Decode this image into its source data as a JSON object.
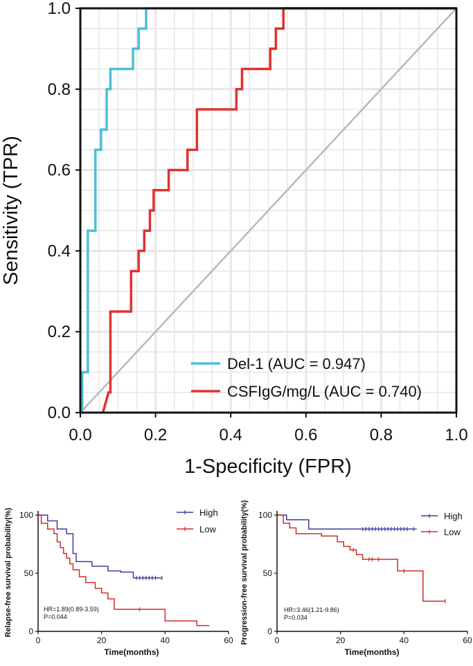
{
  "chart_data": [
    {
      "type": "line",
      "xlabel": "1-Specificity (FPR)",
      "ylabel": "Sensitivity (TPR)",
      "xlim": [
        0,
        1
      ],
      "ylim": [
        0,
        1
      ],
      "xticks": [
        "0.0",
        "0.2",
        "0.4",
        "0.6",
        "0.8",
        "1.0"
      ],
      "yticks": [
        "0.0",
        "0.2",
        "0.4",
        "0.6",
        "0.8",
        "1.0"
      ],
      "grid": true,
      "legend_position": "bottom-right",
      "reference_line": {
        "color": "#b8b8b8",
        "from": [
          0,
          0
        ],
        "to": [
          1,
          1
        ]
      },
      "series": [
        {
          "name": "Del-1 (AUC = 0.947)",
          "color": "#4cbfd6",
          "x": [
            0.0,
            0.005,
            0.005,
            0.02,
            0.02,
            0.04,
            0.04,
            0.055,
            0.055,
            0.07,
            0.07,
            0.08,
            0.08,
            0.14,
            0.14,
            0.155,
            0.155,
            0.175,
            0.175,
            1.0
          ],
          "y": [
            0.0,
            0.0,
            0.1,
            0.1,
            0.45,
            0.45,
            0.65,
            0.65,
            0.7,
            0.7,
            0.8,
            0.8,
            0.85,
            0.85,
            0.9,
            0.9,
            0.95,
            0.95,
            1.0,
            1.0
          ]
        },
        {
          "name": "CSFIgG/mg/L (AUC = 0.740)",
          "color": "#e0312f",
          "x": [
            0.06,
            0.075,
            0.08,
            0.08,
            0.135,
            0.135,
            0.155,
            0.155,
            0.17,
            0.17,
            0.185,
            0.185,
            0.195,
            0.195,
            0.235,
            0.235,
            0.285,
            0.285,
            0.31,
            0.31,
            0.415,
            0.415,
            0.43,
            0.43,
            0.505,
            0.505,
            0.52,
            0.52,
            0.54,
            0.54,
            0.63,
            0.63,
            0.66,
            0.66,
            1.0
          ],
          "y": [
            0.0,
            0.05,
            0.05,
            0.25,
            0.25,
            0.35,
            0.35,
            0.4,
            0.4,
            0.45,
            0.45,
            0.5,
            0.5,
            0.55,
            0.55,
            0.6,
            0.6,
            0.65,
            0.65,
            0.75,
            0.75,
            0.8,
            0.8,
            0.85,
            0.85,
            0.9,
            0.9,
            0.95,
            0.95,
            1.0,
            1.0,
            1.0,
            1.0,
            1.0,
            1.0
          ]
        }
      ]
    },
    {
      "type": "line",
      "xlabel": "Time(months)",
      "ylabel": "Relapse-free survival probability(%)",
      "xlim": [
        0,
        60
      ],
      "ylim": [
        0,
        100
      ],
      "xticks": [
        "0",
        "20",
        "40",
        "60"
      ],
      "yticks": [
        "0",
        "50",
        "100"
      ],
      "legend_position": "top-right",
      "annotation": [
        "HR=1.89(0.89-3.59)",
        "P=0.044"
      ],
      "series": [
        {
          "name": "High",
          "color": "#3a3f9a",
          "x": [
            0,
            3,
            3,
            6,
            6,
            9,
            9,
            11,
            11,
            12,
            12,
            17,
            17,
            22,
            22,
            26,
            26,
            30,
            30,
            39
          ],
          "y": [
            100,
            100,
            95,
            95,
            88,
            88,
            84,
            84,
            67,
            67,
            60,
            60,
            56,
            56,
            52,
            52,
            51,
            51,
            46,
            46
          ],
          "censored_x": [
            31,
            32,
            33,
            34,
            35,
            36,
            37,
            39
          ]
        },
        {
          "name": "Low",
          "color": "#d42a2a",
          "x": [
            0,
            1,
            1,
            3,
            3,
            5,
            5,
            6,
            6,
            7,
            7,
            8,
            8,
            9,
            9,
            10,
            10,
            11,
            11,
            13,
            13,
            15,
            15,
            18,
            18,
            20,
            20,
            22,
            22,
            24,
            24,
            40,
            40,
            50,
            50,
            54
          ],
          "y": [
            100,
            100,
            93,
            93,
            88,
            88,
            84,
            84,
            77,
            77,
            72,
            72,
            67,
            67,
            63,
            63,
            58,
            58,
            53,
            53,
            47,
            47,
            42,
            42,
            37,
            37,
            33,
            33,
            28,
            28,
            19,
            19,
            9,
            9,
            5,
            5
          ],
          "censored_x": [
            32
          ]
        }
      ]
    },
    {
      "type": "line",
      "xlabel": "Time(months)",
      "ylabel": "Progression-free survival probability(%)",
      "xlim": [
        0,
        60
      ],
      "ylim": [
        0,
        100
      ],
      "xticks": [
        "0",
        "20",
        "40",
        "60"
      ],
      "yticks": [
        "0",
        "50",
        "100"
      ],
      "legend_position": "top-right",
      "annotation": [
        "HR=3.46(1.21-9.86)",
        "P=0.034"
      ],
      "series": [
        {
          "name": "High",
          "color": "#3a3f9a",
          "x": [
            0,
            3,
            3,
            10,
            10,
            44
          ],
          "y": [
            100,
            100,
            96,
            96,
            88,
            88
          ],
          "censored_x": [
            27,
            28,
            29,
            30,
            31,
            32,
            33,
            34,
            35,
            36,
            37,
            38,
            39,
            40,
            41,
            43
          ]
        },
        {
          "name": "Low",
          "color": "#d42a2a",
          "x": [
            0,
            2,
            2,
            4,
            4,
            6,
            6,
            14,
            14,
            19,
            19,
            21,
            21,
            23,
            23,
            25,
            25,
            27,
            27,
            38,
            38,
            46,
            46,
            53
          ],
          "y": [
            100,
            100,
            93,
            93,
            89,
            89,
            84,
            84,
            82,
            82,
            77,
            77,
            73,
            73,
            70,
            70,
            66,
            66,
            62,
            62,
            52,
            52,
            26,
            26
          ],
          "censored_x": [
            24,
            29,
            30,
            32,
            40,
            53
          ]
        }
      ]
    }
  ]
}
